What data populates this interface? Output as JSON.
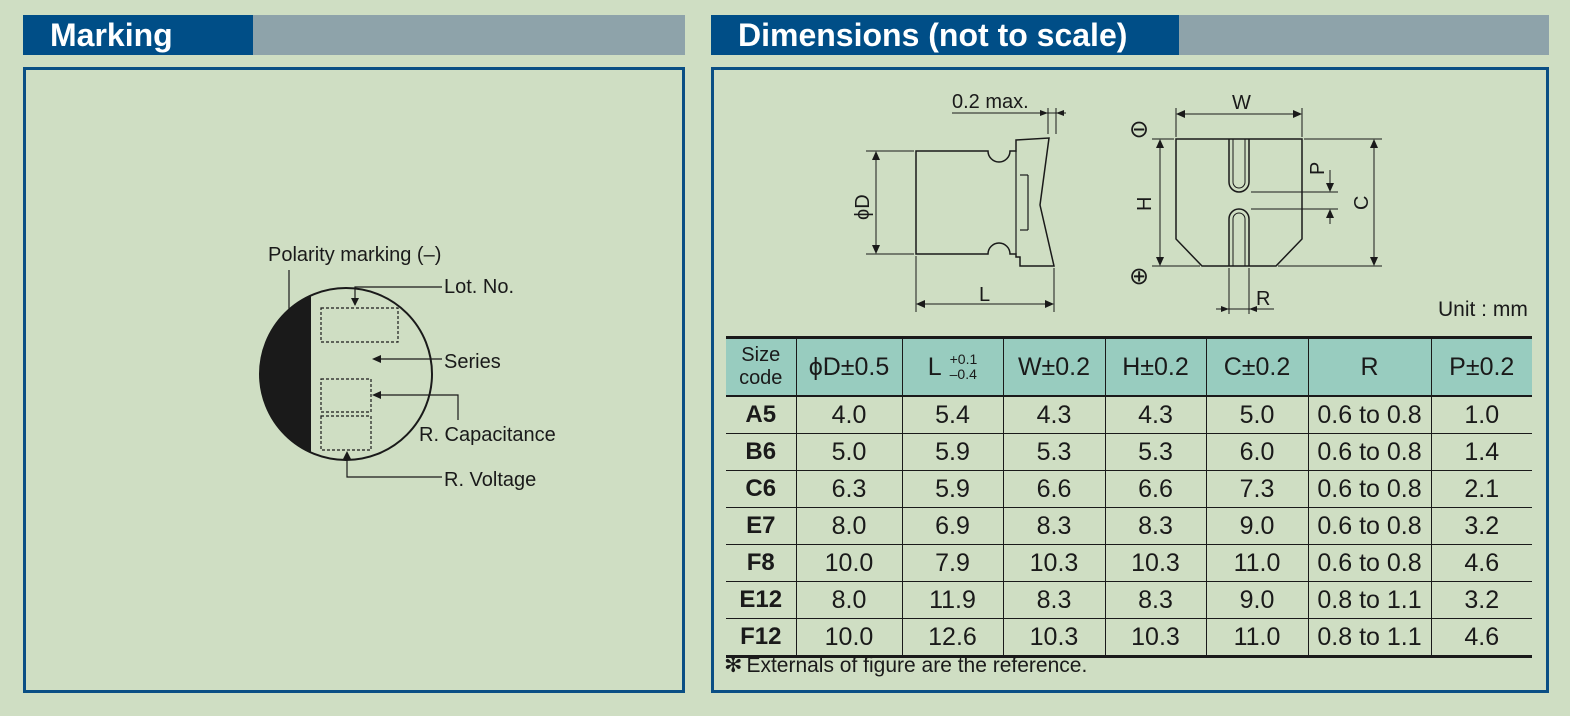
{
  "marking": {
    "title": "Marking",
    "labels": {
      "polarity": "Polarity marking (–)",
      "lot_no": "Lot. No.",
      "series": "Series",
      "capacitance": "R. Capacitance",
      "voltage": "R. Voltage"
    }
  },
  "dimensions": {
    "title": "Dimensions (not to scale)",
    "drawing_labels": {
      "max_lead": "0.2 max.",
      "phi_d": "ϕD",
      "l": "L",
      "w": "W",
      "h": "H",
      "c": "C",
      "p": "P",
      "r": "R",
      "minus": "⊖",
      "plus": "⊕"
    },
    "unit": "Unit : mm",
    "table": {
      "headers": {
        "size_code_1": "Size",
        "size_code_2": "code",
        "d": "ϕD±0.5",
        "l": "L",
        "l_tol_plus": "+0.1",
        "l_tol_minus": "–0.4",
        "w": "W±0.2",
        "h": "H±0.2",
        "c": "C±0.2",
        "r": "R",
        "p": "P±0.2"
      },
      "rows": [
        [
          "A5",
          "4.0",
          "5.4",
          "4.3",
          "4.3",
          "5.0",
          "0.6 to 0.8",
          "1.0"
        ],
        [
          "B6",
          "5.0",
          "5.9",
          "5.3",
          "5.3",
          "6.0",
          "0.6 to 0.8",
          "1.4"
        ],
        [
          "C6",
          "6.3",
          "5.9",
          "6.6",
          "6.6",
          "7.3",
          "0.6 to 0.8",
          "2.1"
        ],
        [
          "E7",
          "8.0",
          "6.9",
          "8.3",
          "8.3",
          "9.0",
          "0.6 to 0.8",
          "3.2"
        ],
        [
          "F8",
          "10.0",
          "7.9",
          "10.3",
          "10.3",
          "11.0",
          "0.6 to 0.8",
          "4.6"
        ],
        [
          "E12",
          "8.0",
          "11.9",
          "8.3",
          "8.3",
          "9.0",
          "0.8 to 1.1",
          "3.2"
        ],
        [
          "F12",
          "10.0",
          "12.6",
          "10.3",
          "10.3",
          "11.0",
          "0.8 to 1.1",
          "4.6"
        ]
      ]
    },
    "footnote_mark": "✻",
    "footnote": "Externals of figure are the reference."
  },
  "colors": {
    "background": "#cfdec3",
    "header_tab": "#004e87",
    "header_bar": "#8ea3aa",
    "panel_border": "#0a4f84",
    "table_header": "#98ccbf"
  }
}
